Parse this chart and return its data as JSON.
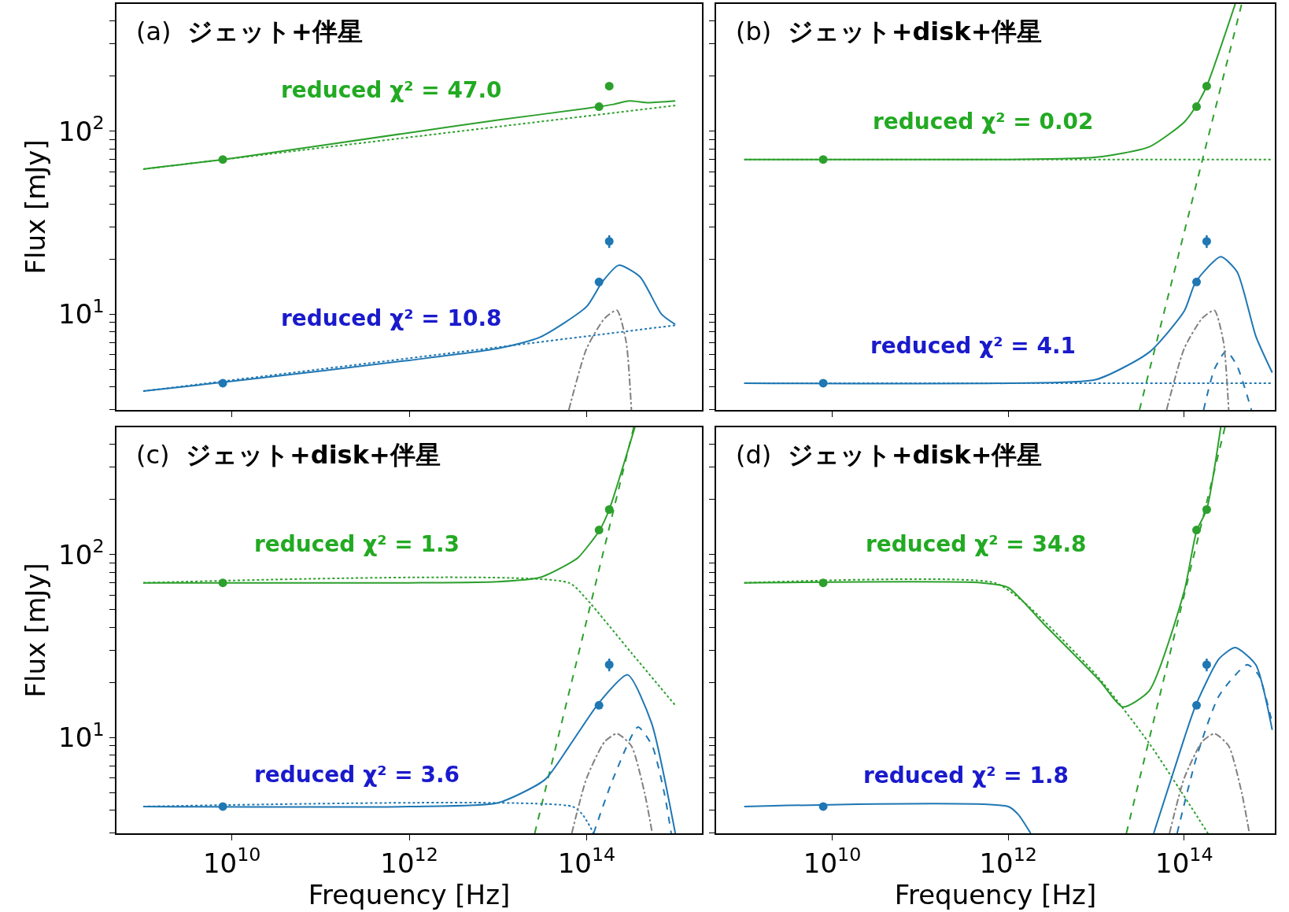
{
  "chart_data": [
    {
      "type": "line",
      "title": "(a) ジェット+伴星",
      "ylabel": "Flux [mJy]",
      "log": "xy",
      "xlim": [
        500000000.0,
        2000000000000000.0
      ],
      "ylim": [
        3,
        495
      ],
      "tick_labels": "y",
      "xticks": [
        {
          "value": 10000000000.0,
          "label": "10$^{10}$"
        },
        {
          "value": 1000000000000.0,
          "label": "10$^{12}$"
        },
        {
          "value": 100000000000000.0,
          "label": "10$^{14}$"
        }
      ],
      "yticks": [
        {
          "value": 3,
          "label": null
        },
        {
          "value": 4,
          "label": null
        },
        {
          "value": 5,
          "label": null
        },
        {
          "value": 6,
          "label": null
        },
        {
          "value": 7,
          "label": null
        },
        {
          "value": 8,
          "label": null
        },
        {
          "value": 9,
          "label": null
        },
        {
          "value": 10,
          "label": "10$^{1}$"
        },
        {
          "value": 20,
          "label": null
        },
        {
          "value": 30,
          "label": null
        },
        {
          "value": 40,
          "label": null
        },
        {
          "value": 50,
          "label": null
        },
        {
          "value": 60,
          "label": null
        },
        {
          "value": 70,
          "label": null
        },
        {
          "value": 80,
          "label": null
        },
        {
          "value": 90,
          "label": null
        },
        {
          "value": 100,
          "label": "10$^{2}$"
        },
        {
          "value": 200,
          "label": null
        },
        {
          "value": 300,
          "label": null
        },
        {
          "value": 400,
          "label": null
        }
      ],
      "annotations": [
        "reduced χ² = 47.0",
        "reduced χ² = 10.8"
      ],
      "series": [
        {
          "type": "line",
          "line_style": "solid",
          "color": "#2ca02c",
          "x": [
            1000000000.0,
            10000000000.0,
            1000000000000.0,
            10000000000000.0,
            100000000000000.0,
            200000000000000.0,
            300000000000000.0,
            500000000000000.0,
            1000000000000000.0
          ],
          "values": [
            62,
            71,
            98,
            115,
            133,
            140,
            146,
            143,
            146
          ]
        },
        {
          "type": "line",
          "line_style": "dotted",
          "color": "#2ca02c",
          "x": [
            1000000000.0,
            1000000000000000.0
          ],
          "values": [
            62,
            138
          ]
        },
        {
          "type": "line",
          "line_style": "solid",
          "color": "#1f77b4",
          "x": [
            1000000000.0,
            10000000000.0,
            1000000000000.0,
            10000000000000.0,
            30000000000000.0,
            100000000000000.0,
            150000000000000.0,
            230000000000000.0,
            400000000000000.0,
            700000000000000.0,
            1000000000000000.0
          ],
          "values": [
            3.8,
            4.3,
            5.6,
            6.5,
            7.5,
            11,
            15,
            18.5,
            16,
            10,
            8.8
          ]
        },
        {
          "type": "line",
          "line_style": "dotted",
          "color": "#1f77b4",
          "x": [
            1000000000.0,
            1000000000000000.0
          ],
          "values": [
            3.8,
            8.7
          ]
        },
        {
          "type": "line",
          "line_style": "dashdot",
          "color": "#808080",
          "x": [
            63000000000000.0,
            100000000000000.0,
            160000000000000.0,
            220000000000000.0,
            280000000000000.0,
            320000000000000.0
          ],
          "values": [
            3,
            6.5,
            9.5,
            10.5,
            7,
            3
          ]
        },
        {
          "type": "scatter",
          "marker": "circle",
          "color": "#2ca02c",
          "x": [
            7900000000.0,
            138000000000000.0,
            180000000000000.0
          ],
          "values": [
            70,
            136,
            176
          ]
        },
        {
          "type": "scatter",
          "marker": "circle",
          "color": "#1f77b4",
          "x": [
            7900000000.0,
            138000000000000.0,
            180000000000000.0
          ],
          "values": [
            4.2,
            15,
            25
          ],
          "errors": [
            null,
            null,
            2
          ]
        }
      ]
    },
    {
      "type": "line",
      "title": "(b) ジェット+disk+伴星",
      "log": "xy",
      "xlim": [
        480000000.0,
        1070000000000000.0
      ],
      "ylim": [
        3,
        495
      ],
      "tick_labels": false,
      "xticks": [
        {
          "value": 10000000000.0,
          "label": "10$^{10}$"
        },
        {
          "value": 1000000000000.0,
          "label": "10$^{12}$"
        },
        {
          "value": 100000000000000.0,
          "label": "10$^{14}$"
        }
      ],
      "yticks": [
        {
          "value": 3,
          "label": null
        },
        {
          "value": 4,
          "label": null
        },
        {
          "value": 5,
          "label": null
        },
        {
          "value": 6,
          "label": null
        },
        {
          "value": 7,
          "label": null
        },
        {
          "value": 8,
          "label": null
        },
        {
          "value": 9,
          "label": null
        },
        {
          "value": 10,
          "label": "10$^{1}$"
        },
        {
          "value": 20,
          "label": null
        },
        {
          "value": 30,
          "label": null
        },
        {
          "value": 40,
          "label": null
        },
        {
          "value": 50,
          "label": null
        },
        {
          "value": 60,
          "label": null
        },
        {
          "value": 70,
          "label": null
        },
        {
          "value": 80,
          "label": null
        },
        {
          "value": 90,
          "label": null
        },
        {
          "value": 100,
          "label": "10$^{2}$"
        },
        {
          "value": 200,
          "label": null
        },
        {
          "value": 300,
          "label": null
        },
        {
          "value": 400,
          "label": null
        }
      ],
      "annotations": [
        "reduced χ² = 0.02",
        "reduced χ² = 4.1"
      ],
      "series": [
        {
          "type": "line",
          "line_style": "solid",
          "color": "#2ca02c",
          "x": [
            1000000000.0,
            1000000000000.0,
            10000000000000.0,
            40000000000000.0,
            100000000000000.0,
            135000000000000.0,
            180000000000000.0,
            380000000000000.0
          ],
          "values": [
            70,
            70,
            72,
            82,
            112,
            136,
            176,
            495
          ]
        },
        {
          "type": "line",
          "line_style": "dotted",
          "color": "#2ca02c",
          "x": [
            1000000000.0,
            1000000000000000.0
          ],
          "values": [
            70,
            70
          ]
        },
        {
          "type": "line",
          "line_style": "dashed",
          "color": "#2ca02c",
          "x": [
            31000000000000.0,
            450000000000000.0
          ],
          "values": [
            3,
            495
          ]
        },
        {
          "type": "line",
          "line_style": "solid",
          "color": "#1f77b4",
          "x": [
            1000000000.0,
            1000000000000.0,
            10000000000000.0,
            40000000000000.0,
            100000000000000.0,
            135000000000000.0,
            260000000000000.0,
            400000000000000.0,
            650000000000000.0,
            1000000000000000.0
          ],
          "values": [
            4.2,
            4.2,
            4.4,
            6.2,
            10.4,
            15,
            20.6,
            17,
            7.6,
            4.8
          ]
        },
        {
          "type": "line",
          "line_style": "dotted",
          "color": "#1f77b4",
          "x": [
            1000000000.0,
            1000000000000000.0
          ],
          "values": [
            4.2,
            4.2
          ]
        },
        {
          "type": "line",
          "line_style": "dashed",
          "color": "#1f77b4",
          "x": [
            166000000000000.0,
            220000000000000.0,
            300000000000000.0,
            400000000000000.0,
            580000000000000.0
          ],
          "values": [
            3,
            5,
            6.3,
            5.2,
            3
          ]
        },
        {
          "type": "line",
          "line_style": "dashdot",
          "color": "#808080",
          "x": [
            63000000000000.0,
            100000000000000.0,
            160000000000000.0,
            220000000000000.0,
            280000000000000.0,
            320000000000000.0
          ],
          "values": [
            3,
            6.5,
            9.5,
            10.5,
            7,
            3
          ]
        },
        {
          "type": "scatter",
          "marker": "circle",
          "color": "#2ca02c",
          "x": [
            7900000000.0,
            138000000000000.0,
            180000000000000.0
          ],
          "values": [
            70,
            136,
            176
          ]
        },
        {
          "type": "scatter",
          "marker": "circle",
          "color": "#1f77b4",
          "x": [
            7900000000.0,
            138000000000000.0,
            180000000000000.0
          ],
          "values": [
            4.2,
            15,
            25
          ],
          "errors": [
            null,
            null,
            2
          ]
        }
      ]
    },
    {
      "type": "line",
      "title": "(c) ジェット+disk+伴星",
      "xlabel": "Frequency [Hz]",
      "ylabel": "Flux [mJy]",
      "log": "xy",
      "xlim": [
        500000000.0,
        2000000000000000.0
      ],
      "ylim": [
        3,
        495
      ],
      "xticks": [
        {
          "value": 10000000000.0,
          "label": "10$^{10}$"
        },
        {
          "value": 1000000000000.0,
          "label": "10$^{12}$"
        },
        {
          "value": 100000000000000.0,
          "label": "10$^{14}$"
        }
      ],
      "yticks": [
        {
          "value": 3,
          "label": null
        },
        {
          "value": 4,
          "label": null
        },
        {
          "value": 5,
          "label": null
        },
        {
          "value": 6,
          "label": null
        },
        {
          "value": 7,
          "label": null
        },
        {
          "value": 8,
          "label": null
        },
        {
          "value": 9,
          "label": null
        },
        {
          "value": 10,
          "label": "10$^{1}$"
        },
        {
          "value": 20,
          "label": null
        },
        {
          "value": 30,
          "label": null
        },
        {
          "value": 40,
          "label": null
        },
        {
          "value": 50,
          "label": null
        },
        {
          "value": 60,
          "label": null
        },
        {
          "value": 70,
          "label": null
        },
        {
          "value": 80,
          "label": null
        },
        {
          "value": 90,
          "label": null
        },
        {
          "value": 100,
          "label": "10$^{2}$"
        },
        {
          "value": 200,
          "label": null
        },
        {
          "value": 300,
          "label": null
        },
        {
          "value": 400,
          "label": null
        }
      ],
      "annotations": [
        "reduced χ² = 1.3",
        "reduced χ² = 3.6"
      ],
      "series": [
        {
          "type": "line",
          "line_style": "solid",
          "color": "#2ca02c",
          "x": [
            1000000000.0,
            1000000000000.0,
            10000000000000.0,
            30000000000000.0,
            60000000000000.0,
            80000000000000.0,
            138000000000000.0,
            180000000000000.0,
            350000000000000.0
          ],
          "values": [
            70,
            70,
            71,
            75,
            88,
            96,
            134,
            176,
            495
          ]
        },
        {
          "type": "line",
          "line_style": "dotted",
          "color": "#2ca02c",
          "x": [
            1000000000.0,
            63000000000000.0,
            100000000000000.0,
            320000000000000.0,
            1000000000000000.0
          ],
          "values": [
            70,
            70,
            57,
            29,
            15
          ]
        },
        {
          "type": "line",
          "line_style": "dashed",
          "color": "#2ca02c",
          "x": [
            26000000000000.0,
            340000000000000.0
          ],
          "values": [
            3,
            495
          ]
        },
        {
          "type": "line",
          "line_style": "solid",
          "color": "#1f77b4",
          "x": [
            1000000000.0,
            1000000000000.0,
            10000000000000.0,
            34000000000000.0,
            63000000000000.0,
            138000000000000.0,
            290000000000000.0,
            540000000000000.0,
            1000000000000000.0
          ],
          "values": [
            4.2,
            4.2,
            4.4,
            5.9,
            8.9,
            15.5,
            22,
            12,
            3
          ]
        },
        {
          "type": "line",
          "line_style": "dotted",
          "color": "#1f77b4",
          "x": [
            1000000000.0,
            69000000000000.0,
            90000000000000.0,
            120000000000000.0
          ],
          "values": [
            4.2,
            4.2,
            3.8,
            3
          ]
        },
        {
          "type": "line",
          "line_style": "dashed",
          "color": "#1f77b4",
          "x": [
            120000000000000.0,
            200000000000000.0,
            380000000000000.0,
            550000000000000.0,
            750000000000000.0,
            900000000000000.0
          ],
          "values": [
            3,
            6,
            11.4,
            9,
            5,
            3
          ]
        },
        {
          "type": "line",
          "line_style": "dashdot",
          "color": "#808080",
          "x": [
            68000000000000.0,
            100000000000000.0,
            160000000000000.0,
            220000000000000.0,
            320000000000000.0,
            450000000000000.0,
            550000000000000.0
          ],
          "values": [
            3,
            6,
            9.5,
            10.5,
            9,
            5,
            3
          ]
        },
        {
          "type": "scatter",
          "marker": "circle",
          "color": "#2ca02c",
          "x": [
            7900000000.0,
            138000000000000.0,
            180000000000000.0
          ],
          "values": [
            70,
            136,
            176
          ]
        },
        {
          "type": "scatter",
          "marker": "circle",
          "color": "#1f77b4",
          "x": [
            7900000000.0,
            138000000000000.0,
            180000000000000.0
          ],
          "values": [
            4.2,
            15,
            25
          ],
          "errors": [
            null,
            null,
            2
          ]
        }
      ]
    },
    {
      "type": "line",
      "title": "(d) ジェット+disk+伴星",
      "xlabel": "Frequency [Hz]",
      "log": "xy",
      "xlim": [
        480000000.0,
        1070000000000000.0
      ],
      "ylim": [
        3,
        495
      ],
      "tick_labels": "x",
      "xticks": [
        {
          "value": 10000000000.0,
          "label": "10$^{10}$"
        },
        {
          "value": 1000000000000.0,
          "label": "10$^{12}$"
        },
        {
          "value": 100000000000000.0,
          "label": "10$^{14}$"
        }
      ],
      "yticks": [
        {
          "value": 3,
          "label": null
        },
        {
          "value": 4,
          "label": null
        },
        {
          "value": 5,
          "label": null
        },
        {
          "value": 6,
          "label": null
        },
        {
          "value": 7,
          "label": null
        },
        {
          "value": 8,
          "label": null
        },
        {
          "value": 9,
          "label": null
        },
        {
          "value": 10,
          "label": "10$^{1}$"
        },
        {
          "value": 20,
          "label": null
        },
        {
          "value": 30,
          "label": null
        },
        {
          "value": 40,
          "label": null
        },
        {
          "value": 50,
          "label": null
        },
        {
          "value": 60,
          "label": null
        },
        {
          "value": 70,
          "label": null
        },
        {
          "value": 80,
          "label": null
        },
        {
          "value": 90,
          "label": null
        },
        {
          "value": 100,
          "label": "10$^{2}$"
        },
        {
          "value": 200,
          "label": null
        },
        {
          "value": 300,
          "label": null
        },
        {
          "value": 400,
          "label": null
        }
      ],
      "annotations": [
        "reduced χ² = 34.8",
        "reduced χ² = 1.8"
      ],
      "series": [
        {
          "type": "line",
          "line_style": "solid",
          "color": "#2ca02c",
          "x": [
            1000000000.0,
            500000000000.0,
            1000000000000.0,
            2500000000000.0,
            11000000000000.0,
            20000000000000.0,
            40000000000000.0,
            100000000000000.0,
            138000000000000.0,
            180000000000000.0,
            260000000000000.0
          ],
          "values": [
            70,
            70,
            66,
            42,
            20.4,
            14.7,
            18,
            63,
            134,
            176,
            495
          ]
        },
        {
          "type": "line",
          "line_style": "dotted",
          "color": "#2ca02c",
          "x": [
            1000000000.0,
            700000000000.0,
            1500000000000.0,
            10000000000000.0,
            40000000000000.0,
            186000000000000.0
          ],
          "values": [
            70,
            70,
            55,
            22,
            9.3,
            3
          ]
        },
        {
          "type": "line",
          "line_style": "dashed",
          "color": "#2ca02c",
          "x": [
            22000000000000.0,
            290000000000000.0
          ],
          "values": [
            3,
            495
          ]
        },
        {
          "type": "line",
          "line_style": "solid",
          "color": "#1f77b4",
          "x": [
            1000000000.0,
            1000000000000.0,
            1300000000000.0,
            1800000000000.0,
            10000000000000.0,
            45000000000000.0,
            100000000000000.0,
            135000000000000.0,
            250000000000000.0,
            380000000000000.0,
            650000000000000.0,
            1000000000000000.0
          ],
          "values": [
            4.2,
            4.2,
            3.8,
            3,
            null,
            3,
            9.9,
            15,
            27,
            31,
            25,
            11
          ]
        },
        {
          "type": "line",
          "line_style": "dashed",
          "color": "#1f77b4",
          "x": [
            83000000000000.0,
            140000000000000.0,
            250000000000000.0,
            520000000000000.0,
            700000000000000.0,
            1000000000000000.0
          ],
          "values": [
            3,
            8,
            17,
            25,
            22,
            12
          ]
        },
        {
          "type": "line",
          "line_style": "dashdot",
          "color": "#808080",
          "x": [
            68000000000000.0,
            100000000000000.0,
            160000000000000.0,
            220000000000000.0,
            320000000000000.0,
            450000000000000.0,
            550000000000000.0
          ],
          "values": [
            3,
            6,
            9.5,
            10.5,
            9,
            5,
            3
          ]
        },
        {
          "type": "scatter",
          "marker": "circle",
          "color": "#2ca02c",
          "x": [
            7900000000.0,
            138000000000000.0,
            180000000000000.0
          ],
          "values": [
            70,
            136,
            176
          ]
        },
        {
          "type": "scatter",
          "marker": "circle",
          "color": "#1f77b4",
          "x": [
            7900000000.0,
            138000000000000.0,
            180000000000000.0
          ],
          "values": [
            4.2,
            15,
            25
          ],
          "errors": [
            null,
            null,
            2
          ]
        }
      ]
    }
  ]
}
